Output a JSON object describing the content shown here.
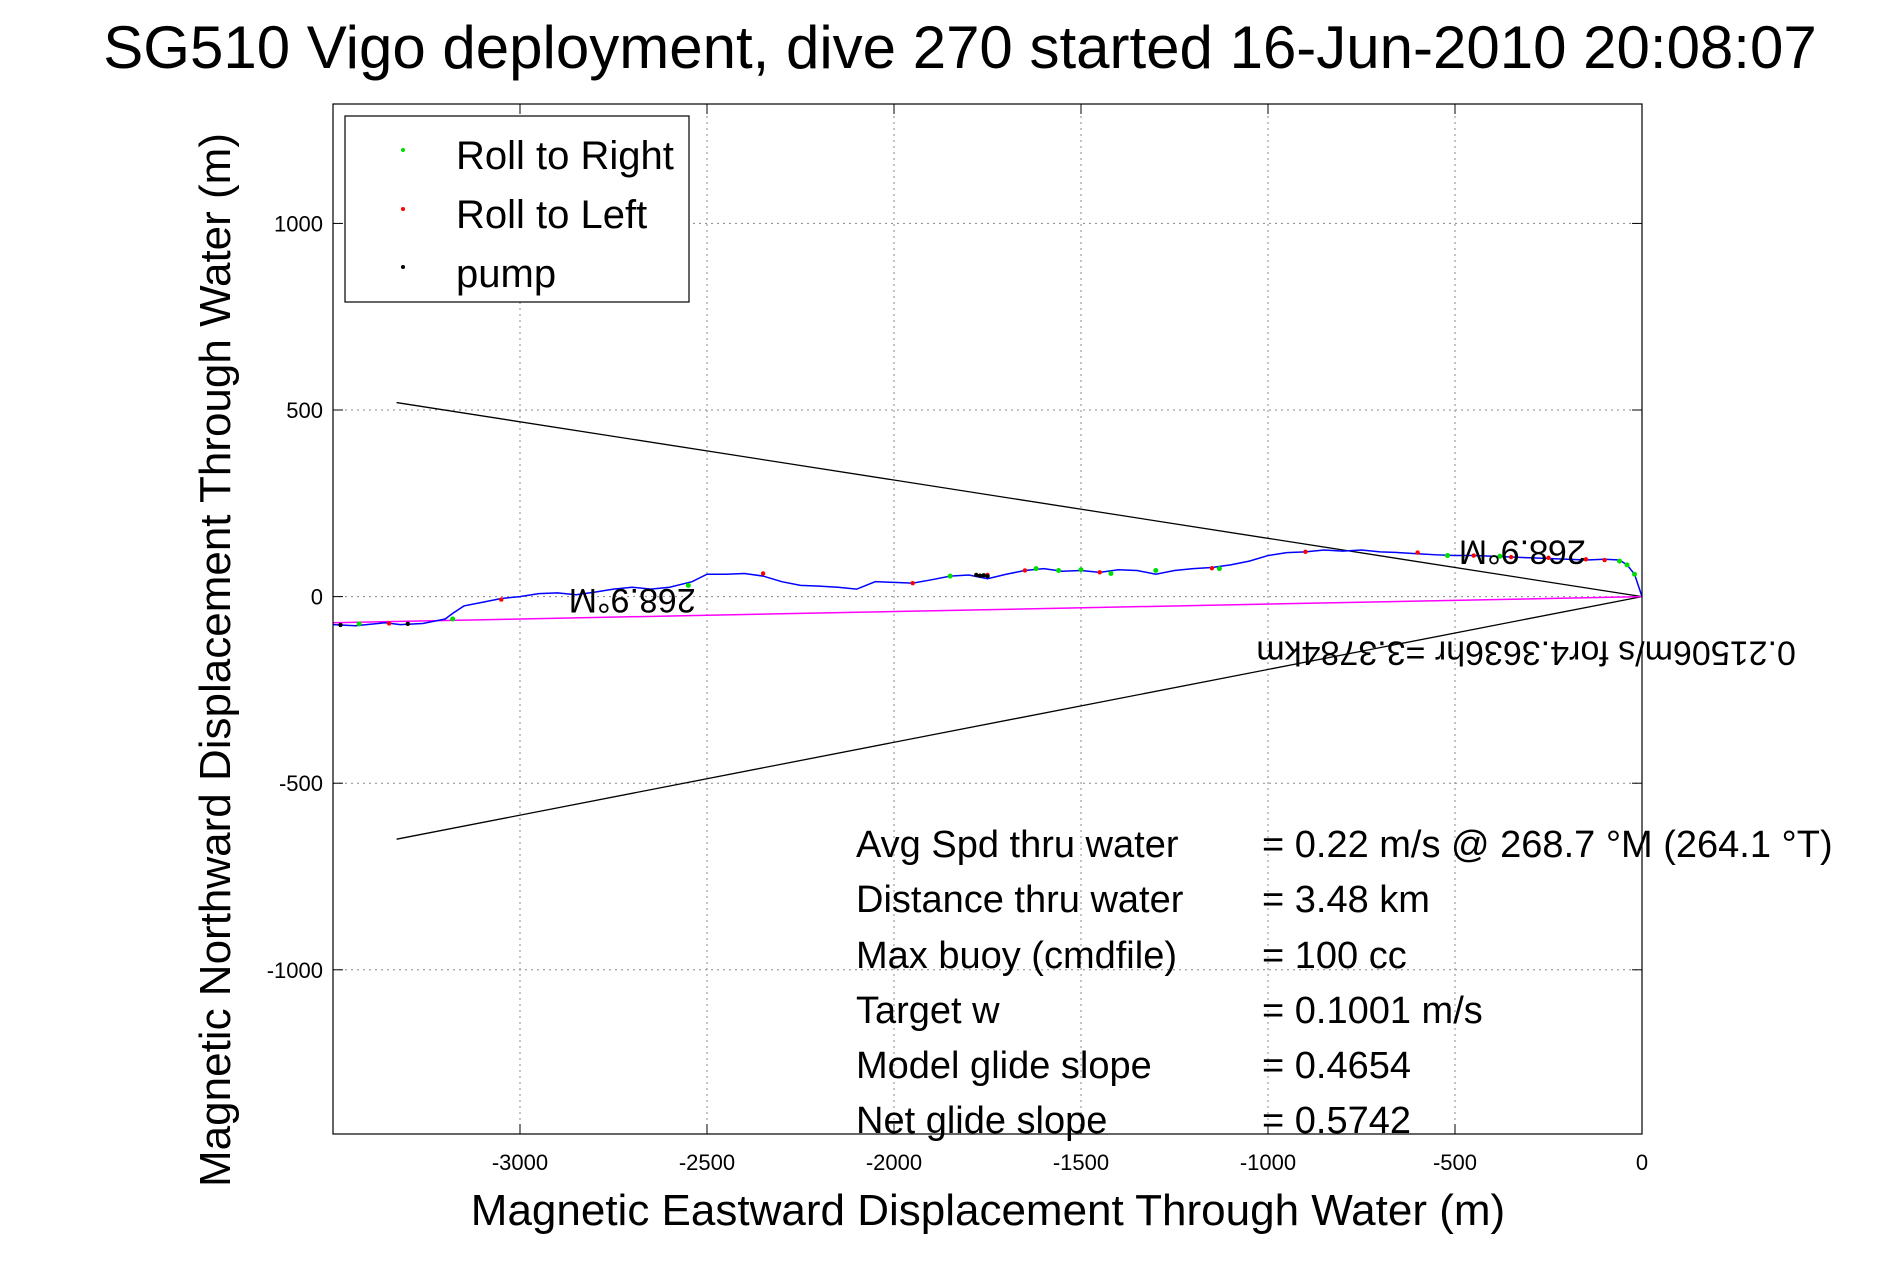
{
  "chart_data": {
    "type": "line",
    "title": "SG510 Vigo deployment, dive 270 started 16-Jun-2010 20:08:07",
    "xlabel": "Magnetic Eastward Displacement Through Water (m)",
    "ylabel": "Magnetic Northward Displacement Through Water (m)",
    "xlim": [
      -3500,
      0
    ],
    "ylim": [
      -1440,
      1320
    ],
    "x_ticks": [
      -3000,
      -2500,
      -2000,
      -1500,
      -1000,
      -500,
      0
    ],
    "y_ticks": [
      -1000,
      -500,
      0,
      500,
      1000
    ],
    "x_tick_labels": [
      "-3000",
      "-2500",
      "-2000",
      "-1500",
      "-1000",
      "-500",
      "0"
    ],
    "y_tick_labels": [
      "-1000",
      "-500",
      "0",
      "500",
      "1000"
    ],
    "grid": true,
    "legend_position": "top-left",
    "legend": [
      {
        "label": "Roll to Right",
        "color": "#00dd00"
      },
      {
        "label": "Roll to Left",
        "color": "#ff0000"
      },
      {
        "label": "pump",
        "color": "#000000"
      }
    ],
    "series": [
      {
        "color": "#0000ff",
        "x": [
          -3500,
          -3440,
          -3400,
          -3360,
          -3320,
          -3260,
          -3200,
          -3180,
          -3150,
          -3100,
          -3050,
          -3000,
          -2950,
          -2900,
          -2850,
          -2800,
          -2750,
          -2700,
          -2650,
          -2600,
          -2540,
          -2500,
          -2450,
          -2400,
          -2350,
          -2300,
          -2250,
          -2200,
          -2150,
          -2100,
          -2050,
          -2000,
          -1950,
          -1900,
          -1850,
          -1800,
          -1750,
          -1700,
          -1650,
          -1600,
          -1550,
          -1500,
          -1450,
          -1400,
          -1350,
          -1300,
          -1250,
          -1200,
          -1150,
          -1100,
          -1050,
          -1000,
          -950,
          -900,
          -850,
          -800,
          -750,
          -700,
          -650,
          -600,
          -550,
          -500,
          -450,
          -400,
          -350,
          -300,
          -250,
          -200,
          -150,
          -100,
          -60,
          -40,
          -20,
          -10,
          0
        ],
        "y": [
          -75,
          -78,
          -74,
          -70,
          -75,
          -72,
          -60,
          -45,
          -25,
          -15,
          -5,
          0,
          8,
          10,
          5,
          12,
          20,
          25,
          20,
          25,
          40,
          60,
          60,
          62,
          55,
          40,
          30,
          28,
          25,
          20,
          40,
          38,
          36,
          45,
          55,
          58,
          48,
          60,
          70,
          75,
          68,
          70,
          65,
          72,
          70,
          60,
          70,
          75,
          78,
          85,
          95,
          110,
          118,
          120,
          125,
          122,
          125,
          120,
          118,
          115,
          112,
          110,
          110,
          108,
          106,
          104,
          102,
          100,
          98,
          100,
          98,
          85,
          60,
          30,
          0
        ]
      }
    ],
    "roll_right_points": {
      "x": [
        -3430,
        -3180,
        -2550,
        -1850,
        -1620,
        -1560,
        -1500,
        -1420,
        -1300,
        -1130,
        -520,
        -380,
        -60,
        -40,
        -20
      ],
      "y": [
        -73,
        -60,
        30,
        55,
        75,
        70,
        72,
        62,
        70,
        75,
        110,
        108,
        95,
        85,
        60
      ]
    },
    "roll_left_points": {
      "x": [
        -3350,
        -3050,
        -2350,
        -1950,
        -1750,
        -1650,
        -1450,
        -1150,
        -900,
        -600,
        -450,
        -350,
        -250,
        -150,
        -100
      ],
      "y": [
        -72,
        -8,
        62,
        36,
        58,
        70,
        65,
        76,
        120,
        118,
        110,
        106,
        104,
        100,
        98
      ]
    },
    "pump_points": {
      "x": [
        -3480,
        -3300,
        -1780,
        -1770,
        -1760,
        -1750
      ],
      "y": [
        -76,
        -73,
        58,
        56,
        57,
        55
      ]
    },
    "current_vector": {
      "color": "#ff00ff",
      "from": [
        0,
        0
      ],
      "to": [
        -3500,
        -70
      ]
    },
    "cone_lines": [
      {
        "color": "#000000",
        "from": [
          0,
          0
        ],
        "to": [
          -3330,
          520
        ]
      },
      {
        "color": "#000000",
        "from": [
          0,
          0
        ],
        "to": [
          -3330,
          -650
        ]
      }
    ],
    "annotations": [
      {
        "text": "268.9°M",
        "x": -2700,
        "y": 20,
        "rotated": true
      },
      {
        "text": "268.9°M",
        "x": -320,
        "y": 150,
        "rotated": true
      },
      {
        "text": "0.21506m/s for4.3636hr =3.3784km",
        "x": -310,
        "y": -120,
        "rotated": true
      }
    ],
    "stats": [
      {
        "label": "Avg Spd thru water",
        "value": "=  0.22 m/s @ 268.7 °M (264.1 °T)"
      },
      {
        "label": "Distance thru water",
        "value": "=  3.48 km"
      },
      {
        "label": "Max buoy (cmdfile)",
        "value": "= 100 cc"
      },
      {
        "label": "Target w",
        "value": "= 0.1001 m/s"
      },
      {
        "label": "Model glide slope",
        "value": "= 0.4654"
      },
      {
        "label": "Net glide slope",
        "value": "= 0.5742"
      }
    ]
  }
}
